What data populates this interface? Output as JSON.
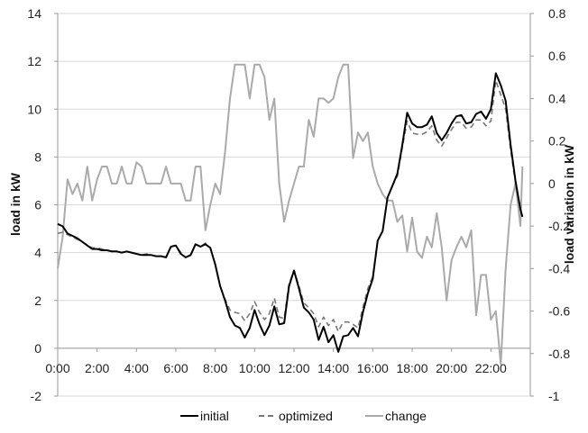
{
  "chart_data": {
    "type": "line",
    "left_axis": {
      "label": "load in kW",
      "min": -2,
      "max": 14,
      "step": 2,
      "ticks": [
        "-2",
        "0",
        "2",
        "4",
        "6",
        "8",
        "10",
        "12",
        "14"
      ]
    },
    "right_axis": {
      "label": "load variation in kW",
      "min": -1,
      "max": 0.8,
      "step": 0.2,
      "ticks": [
        "-1",
        "-0.8",
        "-0.6",
        "-0.4",
        "-0.2",
        "0",
        "0.2",
        "0.4",
        "0.6",
        "0.8"
      ]
    },
    "x_axis": {
      "min": 0,
      "max": 24,
      "ticks": [
        "0:00",
        "2:00",
        "4:00",
        "6:00",
        "8:00",
        "10:00",
        "12:00",
        "14:00",
        "16:00",
        "18:00",
        "20:00",
        "22:00"
      ]
    },
    "grid": "horizontal",
    "legend": {
      "position": "bottom"
    },
    "series": [
      {
        "name": "initial",
        "axis": "left",
        "color": "#000000",
        "dash": "solid",
        "points": [
          [
            0.0,
            5.2
          ],
          [
            0.25,
            5.1
          ],
          [
            0.5,
            4.8
          ],
          [
            0.75,
            4.7
          ],
          [
            1.0,
            4.6
          ],
          [
            1.25,
            4.45
          ],
          [
            1.5,
            4.3
          ],
          [
            1.75,
            4.15
          ],
          [
            2.0,
            4.15
          ],
          [
            2.25,
            4.1
          ],
          [
            2.5,
            4.1
          ],
          [
            2.75,
            4.05
          ],
          [
            3.0,
            4.05
          ],
          [
            3.25,
            4.0
          ],
          [
            3.5,
            4.05
          ],
          [
            3.75,
            4.0
          ],
          [
            4.0,
            3.95
          ],
          [
            4.25,
            3.9
          ],
          [
            4.5,
            3.9
          ],
          [
            4.75,
            3.9
          ],
          [
            5.0,
            3.85
          ],
          [
            5.25,
            3.85
          ],
          [
            5.5,
            3.8
          ],
          [
            5.75,
            4.25
          ],
          [
            6.0,
            4.3
          ],
          [
            6.25,
            3.95
          ],
          [
            6.5,
            3.8
          ],
          [
            6.75,
            3.9
          ],
          [
            7.0,
            4.35
          ],
          [
            7.25,
            4.25
          ],
          [
            7.5,
            4.35
          ],
          [
            7.75,
            4.2
          ],
          [
            8.0,
            3.5
          ],
          [
            8.25,
            2.6
          ],
          [
            8.5,
            2.0
          ],
          [
            8.75,
            1.3
          ],
          [
            9.0,
            0.95
          ],
          [
            9.25,
            0.85
          ],
          [
            9.5,
            0.45
          ],
          [
            9.75,
            0.85
          ],
          [
            10.0,
            1.6
          ],
          [
            10.25,
            1.0
          ],
          [
            10.5,
            0.55
          ],
          [
            10.75,
            0.95
          ],
          [
            11.0,
            1.75
          ],
          [
            11.25,
            1.0
          ],
          [
            11.5,
            1.05
          ],
          [
            11.75,
            2.6
          ],
          [
            12.0,
            3.25
          ],
          [
            12.25,
            2.5
          ],
          [
            12.5,
            1.7
          ],
          [
            12.75,
            1.5
          ],
          [
            13.0,
            1.2
          ],
          [
            13.25,
            0.35
          ],
          [
            13.5,
            0.9
          ],
          [
            13.75,
            0.25
          ],
          [
            14.0,
            0.55
          ],
          [
            14.25,
            -0.15
          ],
          [
            14.5,
            0.5
          ],
          [
            14.75,
            0.55
          ],
          [
            15.0,
            0.85
          ],
          [
            15.25,
            0.5
          ],
          [
            15.5,
            1.5
          ],
          [
            15.75,
            2.3
          ],
          [
            16.0,
            2.9
          ],
          [
            16.25,
            4.5
          ],
          [
            16.5,
            4.9
          ],
          [
            16.75,
            6.3
          ],
          [
            17.0,
            6.8
          ],
          [
            17.25,
            7.3
          ],
          [
            17.5,
            8.5
          ],
          [
            17.75,
            9.85
          ],
          [
            18.0,
            9.4
          ],
          [
            18.25,
            9.25
          ],
          [
            18.5,
            9.25
          ],
          [
            18.75,
            9.35
          ],
          [
            19.0,
            9.7
          ],
          [
            19.25,
            9.0
          ],
          [
            19.5,
            8.7
          ],
          [
            19.75,
            9.0
          ],
          [
            20.0,
            9.4
          ],
          [
            20.25,
            9.7
          ],
          [
            20.5,
            9.75
          ],
          [
            20.75,
            9.4
          ],
          [
            21.0,
            9.45
          ],
          [
            21.25,
            9.8
          ],
          [
            21.5,
            9.9
          ],
          [
            21.75,
            9.6
          ],
          [
            22.0,
            10.0
          ],
          [
            22.25,
            11.5
          ],
          [
            22.5,
            11.0
          ],
          [
            22.75,
            10.35
          ],
          [
            23.0,
            8.5
          ],
          [
            23.25,
            7.0
          ],
          [
            23.5,
            5.8
          ],
          [
            23.6,
            5.5
          ]
        ]
      },
      {
        "name": "optimized",
        "axis": "left",
        "color": "#777777",
        "dash": "dashed",
        "points": [
          [
            0.0,
            4.8
          ],
          [
            0.25,
            4.85
          ],
          [
            0.5,
            4.75
          ],
          [
            0.75,
            4.65
          ],
          [
            1.0,
            4.55
          ],
          [
            1.25,
            4.45
          ],
          [
            1.5,
            4.3
          ],
          [
            1.75,
            4.2
          ],
          [
            2.0,
            4.2
          ],
          [
            2.25,
            4.15
          ],
          [
            2.5,
            4.1
          ],
          [
            2.75,
            4.05
          ],
          [
            3.0,
            4.05
          ],
          [
            3.25,
            4.0
          ],
          [
            3.5,
            4.05
          ],
          [
            3.75,
            4.0
          ],
          [
            4.0,
            3.95
          ],
          [
            4.25,
            3.9
          ],
          [
            4.5,
            3.95
          ],
          [
            4.75,
            3.9
          ],
          [
            5.0,
            3.85
          ],
          [
            5.25,
            3.85
          ],
          [
            5.5,
            3.8
          ],
          [
            5.75,
            4.25
          ],
          [
            6.0,
            4.3
          ],
          [
            6.25,
            4.0
          ],
          [
            6.5,
            3.8
          ],
          [
            6.75,
            3.9
          ],
          [
            7.0,
            4.35
          ],
          [
            7.25,
            4.25
          ],
          [
            7.5,
            4.4
          ],
          [
            7.75,
            4.2
          ],
          [
            8.0,
            3.5
          ],
          [
            8.25,
            2.6
          ],
          [
            8.5,
            2.05
          ],
          [
            8.75,
            1.6
          ],
          [
            9.0,
            1.5
          ],
          [
            9.25,
            1.45
          ],
          [
            9.5,
            1.15
          ],
          [
            9.75,
            1.45
          ],
          [
            10.0,
            1.95
          ],
          [
            10.25,
            1.5
          ],
          [
            10.5,
            1.2
          ],
          [
            10.75,
            1.45
          ],
          [
            11.0,
            2.1
          ],
          [
            11.25,
            1.3
          ],
          [
            11.5,
            1.25
          ],
          [
            11.75,
            2.7
          ],
          [
            12.0,
            3.25
          ],
          [
            12.25,
            2.6
          ],
          [
            12.5,
            1.9
          ],
          [
            12.75,
            1.7
          ],
          [
            13.0,
            1.45
          ],
          [
            13.25,
            0.9
          ],
          [
            13.5,
            1.3
          ],
          [
            13.75,
            0.95
          ],
          [
            14.0,
            1.2
          ],
          [
            14.25,
            0.7
          ],
          [
            14.5,
            1.1
          ],
          [
            14.75,
            1.1
          ],
          [
            15.0,
            1.0
          ],
          [
            15.25,
            0.85
          ],
          [
            15.5,
            1.7
          ],
          [
            15.75,
            2.5
          ],
          [
            16.0,
            3.0
          ],
          [
            16.25,
            4.5
          ],
          [
            16.5,
            4.9
          ],
          [
            16.75,
            6.3
          ],
          [
            17.0,
            6.8
          ],
          [
            17.25,
            7.2
          ],
          [
            17.5,
            8.4
          ],
          [
            17.75,
            9.5
          ],
          [
            18.0,
            9.0
          ],
          [
            18.25,
            8.95
          ],
          [
            18.5,
            8.95
          ],
          [
            18.75,
            9.05
          ],
          [
            19.0,
            9.3
          ],
          [
            19.25,
            8.7
          ],
          [
            19.5,
            8.45
          ],
          [
            19.75,
            8.8
          ],
          [
            20.0,
            9.15
          ],
          [
            20.25,
            9.45
          ],
          [
            20.5,
            9.45
          ],
          [
            20.75,
            9.2
          ],
          [
            21.0,
            9.25
          ],
          [
            21.25,
            9.55
          ],
          [
            21.5,
            9.55
          ],
          [
            21.75,
            9.3
          ],
          [
            22.0,
            9.5
          ],
          [
            22.25,
            11.2
          ],
          [
            22.5,
            10.6
          ],
          [
            22.75,
            10.0
          ],
          [
            23.0,
            8.3
          ],
          [
            23.25,
            6.9
          ],
          [
            23.5,
            5.8
          ],
          [
            23.6,
            5.5
          ]
        ]
      },
      {
        "name": "change",
        "axis": "right",
        "color": "#aaaaaa",
        "dash": "solid",
        "points": [
          [
            0.0,
            -0.4
          ],
          [
            0.25,
            -0.25
          ],
          [
            0.5,
            0.02
          ],
          [
            0.75,
            -0.05
          ],
          [
            1.0,
            0.0
          ],
          [
            1.25,
            -0.08
          ],
          [
            1.5,
            0.08
          ],
          [
            1.75,
            -0.08
          ],
          [
            2.0,
            0.02
          ],
          [
            2.25,
            0.08
          ],
          [
            2.5,
            0.08
          ],
          [
            2.75,
            0.0
          ],
          [
            3.0,
            0.0
          ],
          [
            3.25,
            0.08
          ],
          [
            3.5,
            0.0
          ],
          [
            3.75,
            0.0
          ],
          [
            4.0,
            0.1
          ],
          [
            4.25,
            0.08
          ],
          [
            4.5,
            0.0
          ],
          [
            4.75,
            0.0
          ],
          [
            5.0,
            0.0
          ],
          [
            5.25,
            0.0
          ],
          [
            5.5,
            0.08
          ],
          [
            5.75,
            0.0
          ],
          [
            6.0,
            0.0
          ],
          [
            6.25,
            0.0
          ],
          [
            6.5,
            -0.08
          ],
          [
            6.75,
            -0.08
          ],
          [
            7.0,
            0.08
          ],
          [
            7.25,
            0.08
          ],
          [
            7.5,
            -0.22
          ],
          [
            7.75,
            -0.1
          ],
          [
            8.0,
            0.0
          ],
          [
            8.25,
            -0.05
          ],
          [
            8.5,
            0.15
          ],
          [
            8.75,
            0.4
          ],
          [
            9.0,
            0.56
          ],
          [
            9.25,
            0.56
          ],
          [
            9.5,
            0.56
          ],
          [
            9.75,
            0.4
          ],
          [
            10.0,
            0.56
          ],
          [
            10.25,
            0.56
          ],
          [
            10.5,
            0.5
          ],
          [
            10.75,
            0.3
          ],
          [
            11.0,
            0.4
          ],
          [
            11.25,
            0.0
          ],
          [
            11.5,
            -0.18
          ],
          [
            11.75,
            -0.08
          ],
          [
            12.0,
            0.0
          ],
          [
            12.25,
            0.08
          ],
          [
            12.5,
            0.08
          ],
          [
            12.75,
            0.3
          ],
          [
            13.0,
            0.22
          ],
          [
            13.25,
            0.4
          ],
          [
            13.5,
            0.4
          ],
          [
            13.75,
            0.38
          ],
          [
            14.0,
            0.4
          ],
          [
            14.25,
            0.5
          ],
          [
            14.5,
            0.56
          ],
          [
            14.75,
            0.56
          ],
          [
            15.0,
            0.12
          ],
          [
            15.25,
            0.24
          ],
          [
            15.5,
            0.2
          ],
          [
            15.75,
            0.24
          ],
          [
            16.0,
            0.08
          ],
          [
            16.25,
            0.0
          ],
          [
            16.5,
            -0.05
          ],
          [
            16.75,
            -0.08
          ],
          [
            17.0,
            -0.08
          ],
          [
            17.25,
            -0.18
          ],
          [
            17.5,
            -0.15
          ],
          [
            17.75,
            -0.32
          ],
          [
            18.0,
            -0.16
          ],
          [
            18.25,
            -0.32
          ],
          [
            18.5,
            -0.35
          ],
          [
            18.75,
            -0.25
          ],
          [
            19.0,
            -0.3
          ],
          [
            19.25,
            -0.14
          ],
          [
            19.5,
            -0.3
          ],
          [
            19.75,
            -0.55
          ],
          [
            20.0,
            -0.36
          ],
          [
            20.25,
            -0.3
          ],
          [
            20.5,
            -0.25
          ],
          [
            20.75,
            -0.3
          ],
          [
            21.0,
            -0.22
          ],
          [
            21.25,
            -0.62
          ],
          [
            21.5,
            -0.43
          ],
          [
            21.75,
            -0.43
          ],
          [
            22.0,
            -0.64
          ],
          [
            22.25,
            -0.6
          ],
          [
            22.5,
            -0.85
          ],
          [
            22.75,
            -0.4
          ],
          [
            23.0,
            -0.1
          ],
          [
            23.25,
            0.0
          ],
          [
            23.5,
            -0.2
          ],
          [
            23.6,
            0.08
          ]
        ]
      }
    ]
  }
}
